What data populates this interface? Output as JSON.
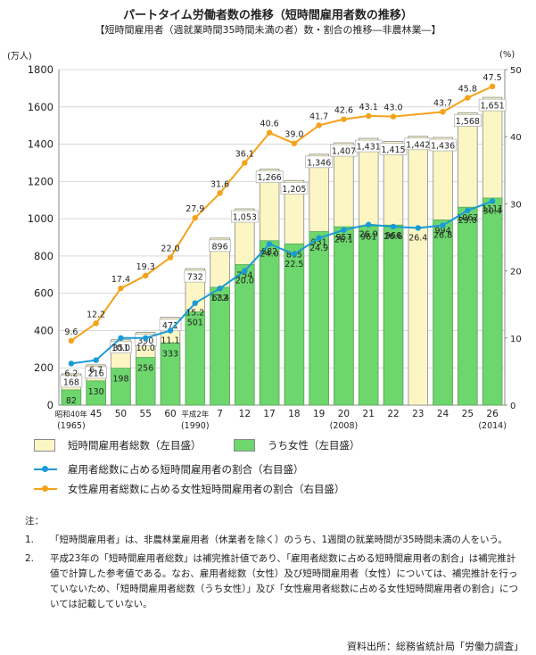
{
  "title": "パートタイム労働者数の推移（短時間雇用者数の推移）",
  "subtitle": "【短時間雇用者（週就業時間35時間未満の者）数・割合の推移―非農林業―】",
  "chart_data": {
    "type": "bar",
    "left_axis_unit": "(万人)",
    "right_axis_unit": "(%)",
    "ylim": [
      0,
      1800
    ],
    "y_ticks": [
      0,
      200,
      400,
      600,
      800,
      1000,
      1200,
      1400,
      1600,
      1800
    ],
    "y2lim": [
      0,
      50
    ],
    "y2_ticks": [
      0,
      10,
      20,
      30,
      40,
      50
    ],
    "categories": [
      {
        "label": "昭和40年",
        "sub": "(1965)"
      },
      {
        "label": "45",
        "sub": ""
      },
      {
        "label": "50",
        "sub": ""
      },
      {
        "label": "55",
        "sub": ""
      },
      {
        "label": "60",
        "sub": ""
      },
      {
        "label": "平成2年",
        "sub": "(1990)"
      },
      {
        "label": "7",
        "sub": ""
      },
      {
        "label": "12",
        "sub": ""
      },
      {
        "label": "17",
        "sub": ""
      },
      {
        "label": "18",
        "sub": ""
      },
      {
        "label": "19",
        "sub": ""
      },
      {
        "label": "20",
        "sub": "(2008)"
      },
      {
        "label": "21",
        "sub": ""
      },
      {
        "label": "22",
        "sub": ""
      },
      {
        "label": "23",
        "sub": ""
      },
      {
        "label": "24",
        "sub": ""
      },
      {
        "label": "25",
        "sub": ""
      },
      {
        "label": "26",
        "sub": "(2014)"
      }
    ],
    "series": [
      {
        "name": "短時間雇用者総数（左目盛）",
        "type": "bar",
        "color": "#fbf6c4",
        "values": [
          168,
          216,
          351,
          390,
          471,
          732,
          896,
          1053,
          1266,
          1205,
          1346,
          1407,
          1431,
          1415,
          1442,
          1436,
          1568,
          1651
        ]
      },
      {
        "name": "うち女性（左目盛）",
        "type": "bar",
        "color": "#6dd66d",
        "values": [
          82,
          130,
          198,
          256,
          333,
          501,
          632,
          754,
          882,
          865,
          931,
          957,
          961,
          966,
          null,
          994,
          1062,
          1111
        ]
      },
      {
        "name": "雇用者総数に占める短時間雇用者の割合（右目盛）",
        "type": "line",
        "color": "#1a9ad6",
        "values": [
          6.2,
          6.7,
          10.0,
          10.0,
          11.1,
          15.2,
          17.4,
          20.0,
          24.0,
          22.5,
          24.9,
          26.1,
          26.9,
          26.6,
          26.4,
          26.8,
          29.0,
          30.4
        ]
      },
      {
        "name": "女性雇用者総数に占める女性短時間雇用者の割合（右目盛）",
        "type": "line",
        "color": "#f5a21b",
        "values": [
          9.6,
          12.2,
          17.4,
          19.3,
          22.0,
          27.9,
          31.6,
          36.1,
          40.6,
          39.0,
          41.7,
          42.6,
          43.1,
          43.0,
          null,
          43.7,
          45.8,
          47.5
        ]
      }
    ],
    "estimated_category": "23"
  },
  "notes": {
    "head": "注：",
    "items": [
      {
        "num": "1.",
        "text": "「短時間雇用者」は、非農林業雇用者（休業者を除く）のうち、1週間の就業時間が35時間未満の人をいう。"
      },
      {
        "num": "2.",
        "text": "平成23年の「短時間雇用者総数」は補完推計値であり、「雇用者総数に占める短時間雇用者の割合」は補完推計値で計算した参考値である。なお、雇用者総数（女性）及び短時間雇用者（女性）については、補完推計を行っていないため、「短時間雇用者総数（うち女性）」及び「女性雇用者総数に占める女性短時間雇用者の割合」については記載していない。"
      }
    ]
  },
  "source": "資料出所：総務省統計局「労働力調査」"
}
